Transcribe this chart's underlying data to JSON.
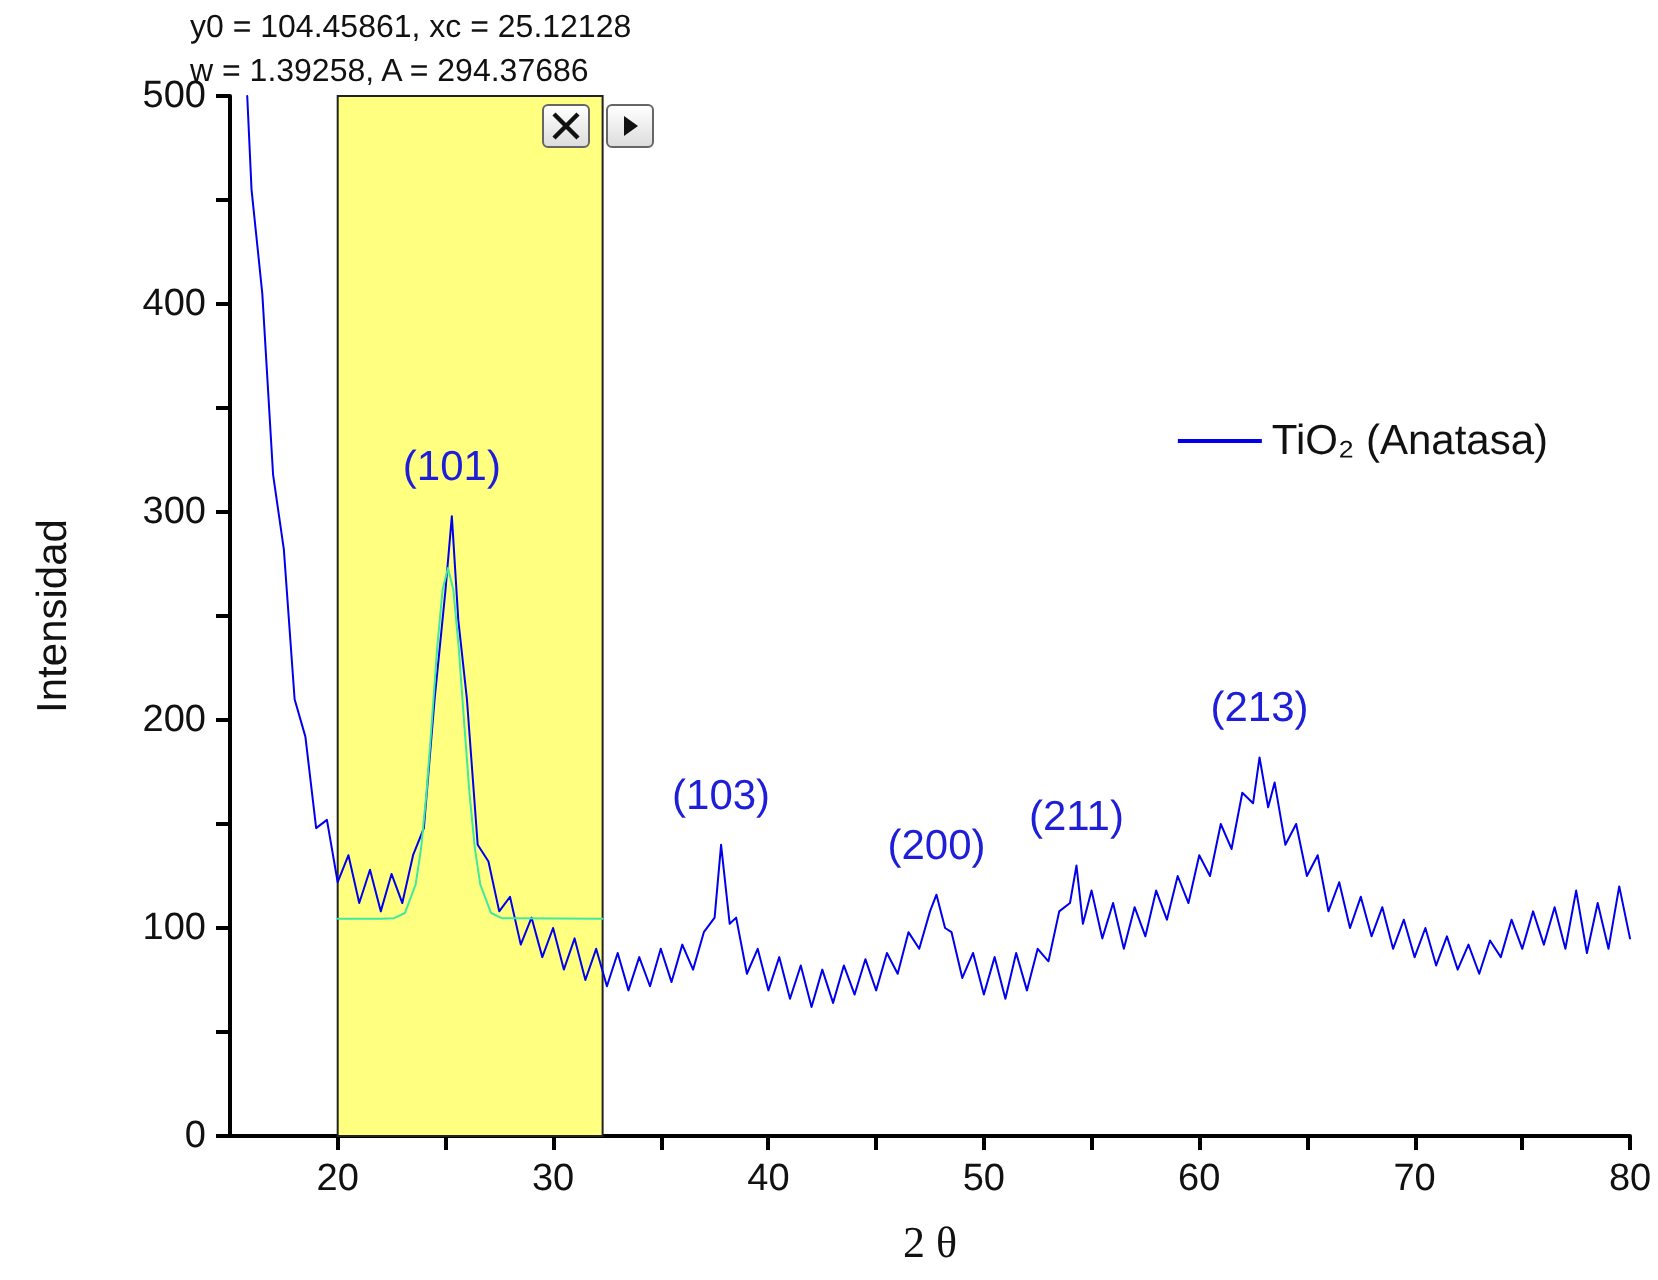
{
  "chart_data": {
    "type": "line",
    "xlabel": "2 θ",
    "ylabel": "Intensidad",
    "xlim": [
      15,
      80
    ],
    "xticks": [
      20,
      {
        "value": 25,
        "label": null
      },
      30,
      {
        "value": 35,
        "label": null
      },
      40,
      {
        "value": 45,
        "label": null
      },
      50,
      {
        "value": 55,
        "label": null
      },
      60,
      {
        "value": 65,
        "label": null
      },
      70,
      {
        "value": 75,
        "label": null
      },
      80
    ],
    "ylim": [
      0,
      500
    ],
    "yticks": [
      0,
      {
        "value": 50,
        "label": null
      },
      100,
      {
        "value": 150,
        "label": null
      },
      200,
      {
        "value": 250,
        "label": null
      },
      300,
      {
        "value": 350,
        "label": null
      },
      400,
      {
        "value": 450,
        "label": null
      },
      500
    ],
    "grid": false,
    "legend": "top right",
    "marker": "none",
    "line_style": "solid",
    "bands": [
      {
        "axis": "x",
        "from": 20,
        "to": 32.3,
        "color": "#ffff80"
      }
    ],
    "annotations": [
      "y0 = 104.45861, xc = 25.12128",
      "w = 1.39258, A = 294.37686",
      {
        "text": "(101)",
        "x": 25.3,
        "y": 298
      },
      {
        "text": "(103)",
        "x": 37.8,
        "y": 140
      },
      {
        "text": "(200)",
        "x": 47.8,
        "y": 116
      },
      {
        "text": "(211)",
        "x": 54.3,
        "y": 130
      },
      {
        "text": "(213)",
        "x": 62.8,
        "y": 182
      }
    ],
    "series": [
      {
        "name": "TiO₂ (Anatasa)",
        "color": "#0000ee",
        "x": [
          15.8,
          16,
          16.5,
          17,
          17.5,
          18,
          18.5,
          19,
          19.5,
          20,
          20.5,
          21,
          21.5,
          22,
          22.5,
          23,
          23.5,
          24,
          24.5,
          25,
          25.3,
          25.6,
          26,
          26.5,
          27,
          27.5,
          28,
          28.5,
          29,
          29.5,
          30,
          30.5,
          31,
          31.5,
          32,
          32.5,
          33,
          33.5,
          34,
          34.5,
          35,
          35.5,
          36,
          36.5,
          37,
          37.5,
          37.8,
          38.2,
          38.5,
          39,
          39.5,
          40,
          40.5,
          41,
          41.5,
          42,
          42.5,
          43,
          43.5,
          44,
          44.5,
          45,
          45.5,
          46,
          46.5,
          47,
          47.5,
          47.8,
          48.2,
          48.5,
          49,
          49.5,
          50,
          50.5,
          51,
          51.5,
          52,
          52.5,
          53,
          53.5,
          54,
          54.3,
          54.6,
          55,
          55.5,
          56,
          56.5,
          57,
          57.5,
          58,
          58.5,
          59,
          59.5,
          60,
          60.5,
          61,
          61.5,
          62,
          62.5,
          62.8,
          63.2,
          63.5,
          64,
          64.5,
          65,
          65.5,
          66,
          66.5,
          67,
          67.5,
          68,
          68.5,
          69,
          69.5,
          70,
          70.5,
          71,
          71.5,
          72,
          72.5,
          73,
          73.5,
          74,
          74.5,
          75,
          75.5,
          76,
          76.5,
          77,
          77.5,
          78,
          78.5,
          79,
          79.5,
          80
        ],
        "values": [
          500,
          455,
          405,
          318,
          282,
          210,
          192,
          148,
          152,
          122,
          135,
          112,
          128,
          108,
          126,
          112,
          135,
          148,
          210,
          262,
          298,
          248,
          210,
          140,
          132,
          108,
          115,
          92,
          105,
          86,
          100,
          80,
          95,
          75,
          90,
          72,
          88,
          70,
          86,
          72,
          90,
          74,
          92,
          80,
          98,
          105,
          140,
          102,
          105,
          78,
          90,
          70,
          86,
          66,
          82,
          62,
          80,
          64,
          82,
          68,
          85,
          70,
          88,
          78,
          98,
          90,
          108,
          116,
          100,
          98,
          76,
          88,
          68,
          86,
          66,
          88,
          70,
          90,
          84,
          108,
          112,
          130,
          102,
          118,
          95,
          112,
          90,
          110,
          96,
          118,
          104,
          125,
          112,
          135,
          125,
          150,
          138,
          165,
          160,
          182,
          158,
          170,
          140,
          150,
          125,
          135,
          108,
          122,
          100,
          115,
          96,
          110,
          90,
          104,
          86,
          100,
          82,
          96,
          80,
          92,
          78,
          94,
          86,
          104,
          90,
          108,
          92,
          110,
          90,
          118,
          88,
          112,
          90,
          120,
          95
        ]
      },
      {
        "color": "#40e8a0",
        "x": [
          20,
          22,
          22.62,
          23.12,
          23.62,
          23.87,
          24.12,
          24.37,
          24.62,
          24.87,
          25.12,
          25.37,
          25.62,
          25.87,
          26.12,
          26.37,
          26.62,
          27.12,
          27.62,
          32.3
        ],
        "values": [
          104.5,
          104.5,
          104.7,
          107.2,
          121,
          138.2,
          164.6,
          198.9,
          234.8,
          262.6,
          273.1,
          262.6,
          234.8,
          198.9,
          164.6,
          138.2,
          121,
          107.2,
          104.7,
          104.5
        ]
      }
    ]
  }
}
